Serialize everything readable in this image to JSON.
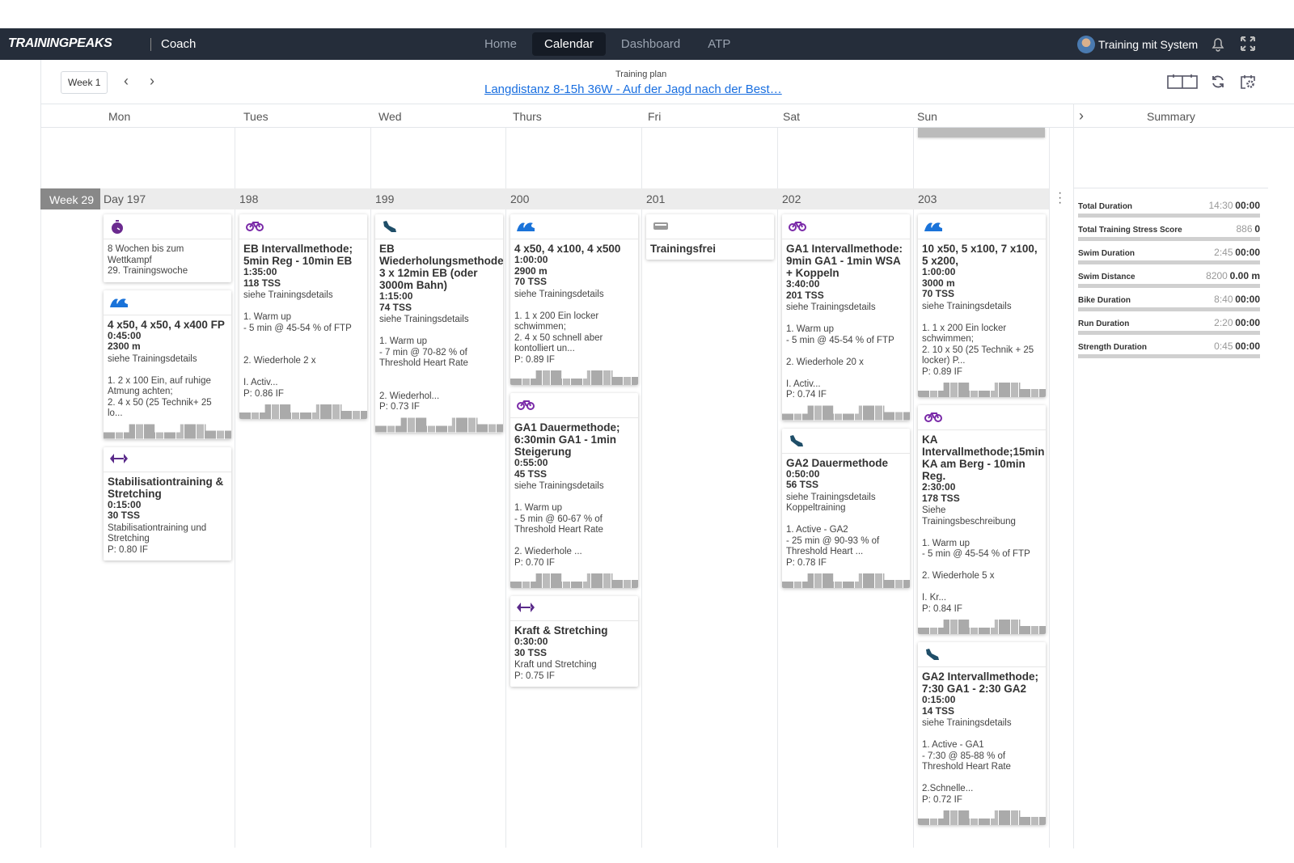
{
  "nav": {
    "logo": "TRAININGPEAKS",
    "role": "Coach",
    "items": [
      "Home",
      "Calendar",
      "Dashboard",
      "ATP"
    ],
    "active": "Calendar",
    "user": "Training mit System"
  },
  "toolbar": {
    "week": "Week 1",
    "plan_label": "Training plan",
    "plan_title": "Langdistanz 8-15h 36W - Auf der Jagd nach der Best…"
  },
  "days": [
    "Mon",
    "Tues",
    "Wed",
    "Thurs",
    "Fri",
    "Sat",
    "Sun"
  ],
  "summary_header": "Summary",
  "week": {
    "label": "Week 29",
    "day_numbers": [
      "Day 197",
      "198",
      "199",
      "200",
      "201",
      "202",
      "203"
    ]
  },
  "columns": [
    {
      "cards": [
        {
          "icon": "stopwatch",
          "color": "#6b2a8f",
          "title": "",
          "lines": [],
          "desc": "8 Wochen bis zum\nWettkampf\n29. Trainingswoche",
          "graph": false
        },
        {
          "icon": "swim",
          "color": "#1a73d9",
          "title": "4 x50, 4 x50, 4 x400 FP",
          "lines": [
            "0:45:00",
            "2300 m"
          ],
          "desc": "siehe Trainingsdetails\n\n1. 2 x 100 Ein, auf ruhige Atmung achten;\n2. 4 x 50 (25 Technik+ 25 lo...",
          "graph": true
        },
        {
          "icon": "strength",
          "color": "#5a2a8a",
          "title": "Stabilisationtraining & Stretching",
          "lines": [
            "0:15:00",
            "30 TSS"
          ],
          "desc": "Stabilisationtraining und Stretching\nP: 0.80 IF",
          "graph": false
        }
      ]
    },
    {
      "cards": [
        {
          "icon": "bike",
          "color": "#7a2aa8",
          "title": "EB Intervallmethode; 5min Reg - 10min EB",
          "lines": [
            "1:35:00",
            "118 TSS"
          ],
          "desc": "siehe Trainingsdetails\n\n1. Warm up\n- 5 min @ 45-54 % of FTP\n\n\n2. Wiederhole 2 x\n\nI. Activ...\nP: 0.86 IF",
          "graph": true
        }
      ]
    },
    {
      "cards": [
        {
          "icon": "run",
          "color": "#1f4e68",
          "title": "EB Wiederholungsmethode: 3 x 12min EB (oder 3000m Bahn)",
          "lines": [
            "1:15:00",
            "74 TSS"
          ],
          "desc": "siehe Trainingsdetails\n\n1. Warm up\n- 7 min @ 70-82 % of Threshold Heart Rate\n\n\n2. Wiederhol...\nP: 0.73 IF",
          "graph": true
        }
      ]
    },
    {
      "cards": [
        {
          "icon": "swim",
          "color": "#1a73d9",
          "title": "4 x50, 4 x100, 4 x500",
          "lines": [
            "1:00:00",
            "2900 m",
            "70 TSS"
          ],
          "desc": "siehe Trainingsdetails\n\n1. 1 x 200 Ein locker schwimmen;\n2. 4 x 50 schnell aber kontolliert un...\nP: 0.89 IF",
          "graph": true
        },
        {
          "icon": "bike",
          "color": "#7a2aa8",
          "title": "GA1 Dauermethode; 6:30min GA1 - 1min Steigerung",
          "lines": [
            "0:55:00",
            "45 TSS"
          ],
          "desc": "siehe Trainingsdetails\n\n1. Warm up\n- 5 min @ 60-67 % of Threshold Heart Rate\n\n2. Wiederhole ...\nP: 0.70 IF",
          "graph": true
        },
        {
          "icon": "strength",
          "color": "#5a2a8a",
          "title": "Kraft & Stretching",
          "lines": [
            "0:30:00",
            "30 TSS"
          ],
          "desc": "Kraft und Stretching\nP: 0.75 IF",
          "graph": false
        }
      ]
    },
    {
      "cards": [
        {
          "icon": "day-off",
          "color": "#999999",
          "title": "Trainingsfrei",
          "lines": [],
          "desc": "",
          "graph": false
        }
      ]
    },
    {
      "cards": [
        {
          "icon": "bike",
          "color": "#7a2aa8",
          "title": "GA1 Intervallmethode: 9min GA1 - 1min WSA + Koppeln",
          "lines": [
            "3:40:00",
            "201 TSS"
          ],
          "desc": "siehe Trainingsdetails\n\n1. Warm up\n- 5 min @ 45-54 % of FTP\n\n2. Wiederhole 20 x\n\nI. Activ...\nP: 0.74 IF",
          "graph": true
        },
        {
          "icon": "run",
          "color": "#1f4e68",
          "title": "GA2 Dauermethode",
          "lines": [
            "0:50:00",
            "56 TSS"
          ],
          "desc": "siehe Trainingsdetails\nKoppeltraining\n\n1. Active - GA2\n- 25 min @ 90-93 % of Threshold Heart ...\nP: 0.78 IF",
          "graph": true
        }
      ]
    },
    {
      "cards": [
        {
          "icon": "swim",
          "color": "#1a73d9",
          "title": "10 x50, 5 x100, 7 x100, 5 x200,",
          "lines": [
            "1:00:00",
            "3000 m",
            "70 TSS"
          ],
          "desc": "siehe Trainingsdetails\n\n1. 1 x 200 Ein locker schwimmen;\n2. 10 x 50 (25 Technik + 25 locker) P...\nP: 0.89 IF",
          "graph": true
        },
        {
          "icon": "bike",
          "color": "#7a2aa8",
          "title": "KA Intervallmethode;15min KA am Berg - 10min Reg.",
          "lines": [
            "2:30:00",
            "178 TSS"
          ],
          "desc": "Siehe Trainingsbeschreibung\n\n1. Warm up\n- 5 min @ 45-54 % of FTP\n\n2. Wiederhole 5 x\n\nI. Kr...\nP: 0.84 IF",
          "graph": true
        },
        {
          "icon": "run",
          "color": "#1f4e68",
          "title": "GA2 Intervallmethode; 7:30 GA1 - 2:30 GA2",
          "lines": [
            "0:15:00",
            "14 TSS"
          ],
          "desc": "siehe Trainingsdetails\n\n1. Active - GA1\n- 7:30 @ 85-88 % of Threshold Heart Rate\n\n2.Schnelle...\nP: 0.72 IF",
          "graph": true
        }
      ]
    }
  ],
  "summary": [
    {
      "label": "Total Duration",
      "planned": "14:30",
      "actual": "00:00"
    },
    {
      "label": "Total Training Stress Score",
      "planned": "886",
      "actual": "0"
    },
    {
      "label": "Swim Duration",
      "planned": "2:45",
      "actual": "00:00"
    },
    {
      "label": "Swim Distance",
      "planned": "8200",
      "actual": "0.00 m"
    },
    {
      "label": "Bike Duration",
      "planned": "8:40",
      "actual": "00:00"
    },
    {
      "label": "Run Duration",
      "planned": "2:20",
      "actual": "00:00"
    },
    {
      "label": "Strength Duration",
      "planned": "0:45",
      "actual": "00:00"
    }
  ]
}
